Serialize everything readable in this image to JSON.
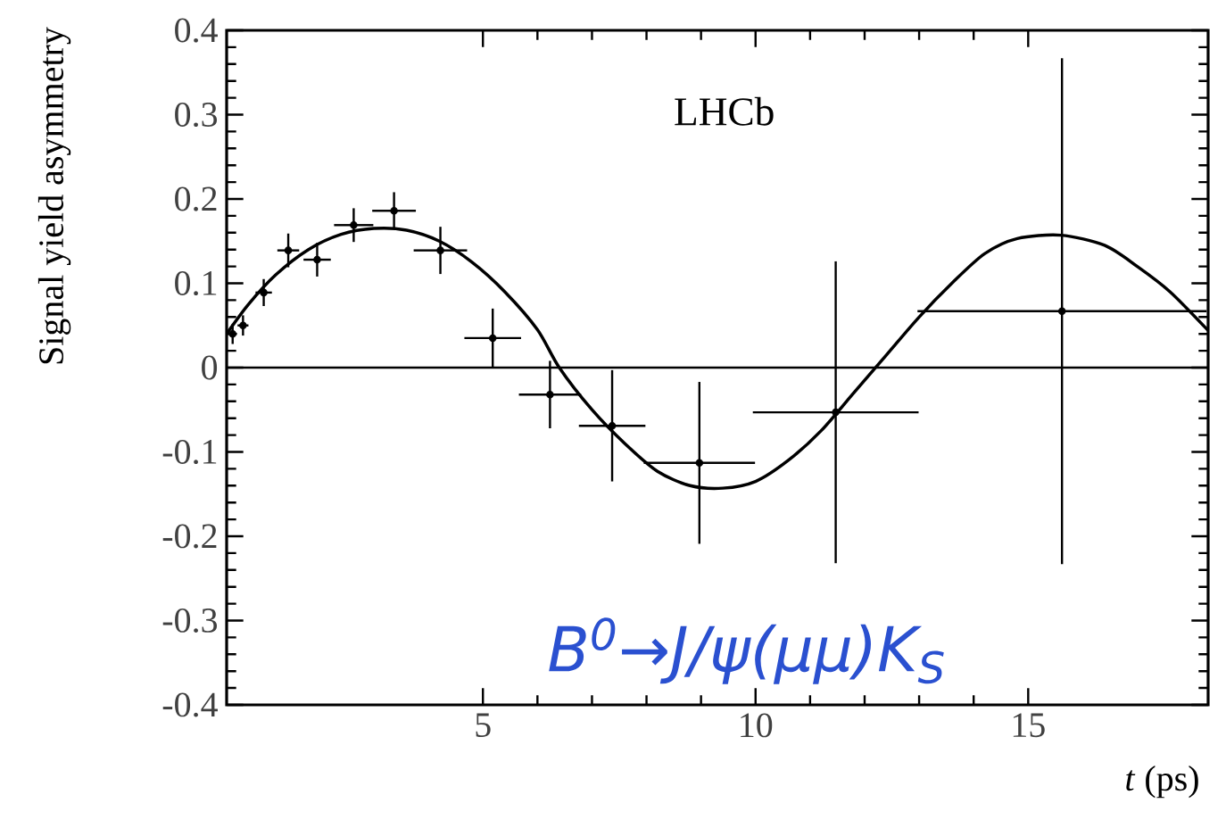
{
  "chart_data": {
    "type": "scatter",
    "xlabel": "*t* (ps)",
    "ylabel": "Signal yield asymmetry",
    "xlim": [
      0.3,
      18.3
    ],
    "ylim": [
      -0.4,
      0.4
    ],
    "xticks": [
      5,
      10,
      15
    ],
    "yticks": [
      -0.4,
      -0.3,
      -0.2,
      -0.1,
      0,
      0.1,
      0.2,
      0.3,
      0.4
    ],
    "ref_lines": [
      {
        "axis": "y",
        "value": 0,
        "color": "#000000"
      }
    ],
    "annotations": [
      "LHCb",
      "*B$^{0}$→J/ψ(μμ)K$_{S}$*"
    ],
    "series": [
      {
        "type": "scatter",
        "color": "#000000",
        "marker": "circle",
        "x": [
          0.41,
          0.6,
          0.98,
          1.43,
          1.96,
          2.63,
          3.37,
          4.22,
          5.18,
          6.23,
          7.37,
          8.97,
          11.47,
          15.62
        ],
        "values": [
          0.04,
          0.05,
          0.089,
          0.139,
          0.128,
          0.169,
          0.186,
          0.139,
          0.035,
          -0.032,
          -0.069,
          -0.113,
          -0.053,
          0.067
        ],
        "errors": [
          0.012,
          0.012,
          0.016,
          0.02,
          0.02,
          0.02,
          0.022,
          0.028,
          0.035,
          0.04,
          0.066,
          0.096,
          0.179,
          0.3
        ],
        "xerrors": [
          0.08,
          0.1,
          0.15,
          0.2,
          0.25,
          0.36,
          0.4,
          0.49,
          0.52,
          0.57,
          0.61,
          1.02,
          1.52,
          2.65
        ]
      },
      {
        "type": "line",
        "color": "#000000",
        "marker": "none",
        "line_style": "solid",
        "x": [
          0.3,
          0.7,
          1.2,
          1.8,
          2.4,
          3.0,
          3.6,
          4.2,
          4.8,
          5.4,
          6.0,
          6.4,
          7.0,
          7.6,
          8.2,
          8.8,
          9.4,
          10.0,
          10.6,
          11.2,
          11.8,
          12.4,
          13.0,
          13.6,
          14.2,
          14.8,
          15.6,
          16.4,
          17.0,
          17.6,
          18.3
        ],
        "values": [
          0.04,
          0.075,
          0.11,
          0.14,
          0.158,
          0.165,
          0.163,
          0.15,
          0.125,
          0.09,
          0.045,
          0.0,
          -0.05,
          -0.09,
          -0.123,
          -0.14,
          -0.143,
          -0.135,
          -0.11,
          -0.075,
          -0.03,
          0.015,
          0.06,
          0.1,
          0.135,
          0.153,
          0.157,
          0.145,
          0.12,
          0.09,
          0.044
        ]
      }
    ]
  }
}
